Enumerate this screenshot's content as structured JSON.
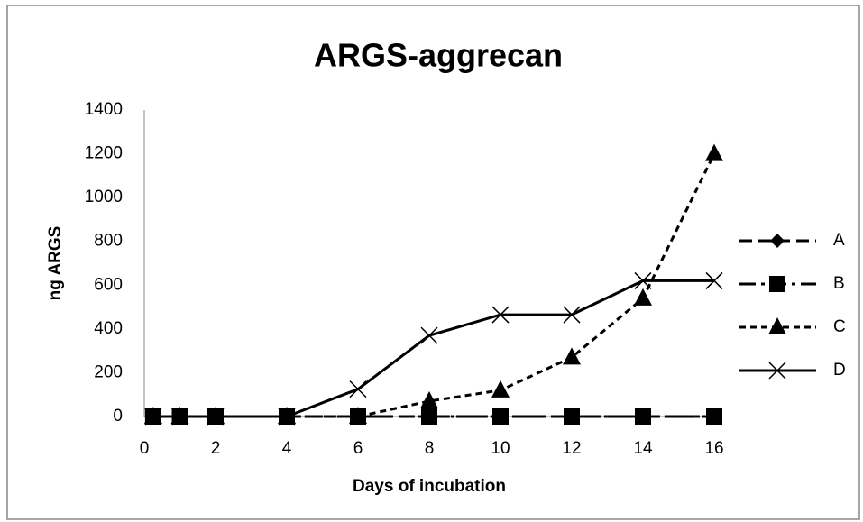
{
  "chart_data": {
    "type": "line",
    "title": "ARGS-aggrecan",
    "xlabel": "Days of incubation",
    "ylabel": "ng ARGS",
    "x": [
      0.25,
      1,
      2,
      4,
      6,
      8,
      10,
      12,
      14,
      16
    ],
    "series": [
      {
        "name": "A",
        "color": "#000000",
        "marker": "diamond",
        "dash": "14,7",
        "values": [
          0,
          0,
          0,
          0,
          0,
          0,
          0,
          0,
          0,
          0
        ]
      },
      {
        "name": "B",
        "color": "#000000",
        "marker": "square",
        "dash": "18,6,4,6",
        "values": [
          0,
          0,
          0,
          0,
          0,
          0,
          0,
          0,
          0,
          0
        ]
      },
      {
        "name": "C",
        "color": "#000000",
        "marker": "triangle",
        "dash": "7,5",
        "values": [
          0,
          0,
          0,
          0,
          0,
          70,
          120,
          270,
          540,
          1200
        ]
      },
      {
        "name": "D",
        "color": "#000000",
        "marker": "x",
        "dash": "none",
        "values": [
          0,
          0,
          0,
          0,
          125,
          370,
          465,
          465,
          620,
          620
        ]
      }
    ],
    "xlim": [
      0,
      16
    ],
    "xticks": [
      0,
      2,
      4,
      6,
      8,
      10,
      12,
      14,
      16
    ],
    "ylim": [
      0,
      1400
    ],
    "yticks": [
      0,
      200,
      400,
      600,
      800,
      1000,
      1200,
      1400
    ],
    "grid": false,
    "legend": "right"
  }
}
